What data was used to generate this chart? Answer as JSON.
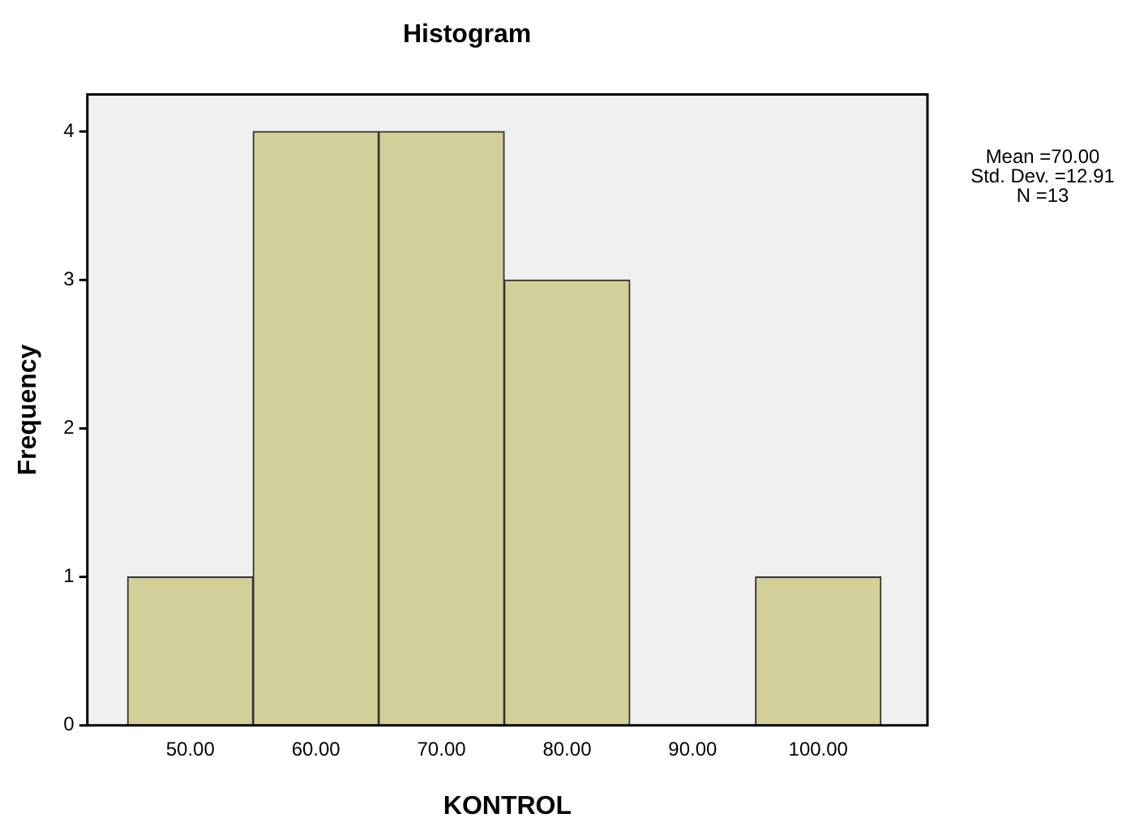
{
  "chart_data": {
    "type": "histogram",
    "title": "Histogram",
    "xlabel": "KONTROL",
    "ylabel": "Frequency",
    "bins": [
      45,
      55,
      65,
      75,
      85,
      95,
      105
    ],
    "values": [
      1,
      4,
      4,
      3,
      0,
      1
    ],
    "color": "#d3cf98",
    "xlim": [
      41.8,
      108.7
    ],
    "xticks": [
      {
        "value": 50,
        "label": "50.00"
      },
      {
        "value": 60,
        "label": "60.00"
      },
      {
        "value": 70,
        "label": "70.00"
      },
      {
        "value": 80,
        "label": "80.00"
      },
      {
        "value": 90,
        "label": "90.00"
      },
      {
        "value": 100,
        "label": "100.00"
      }
    ],
    "ylim": [
      0,
      4.25
    ],
    "yticks": [
      0,
      1,
      2,
      3,
      4
    ],
    "grid": false,
    "legend": false,
    "annotations": [
      "Mean =70.00",
      "Std. Dev. =12.91",
      "N =13"
    ]
  }
}
